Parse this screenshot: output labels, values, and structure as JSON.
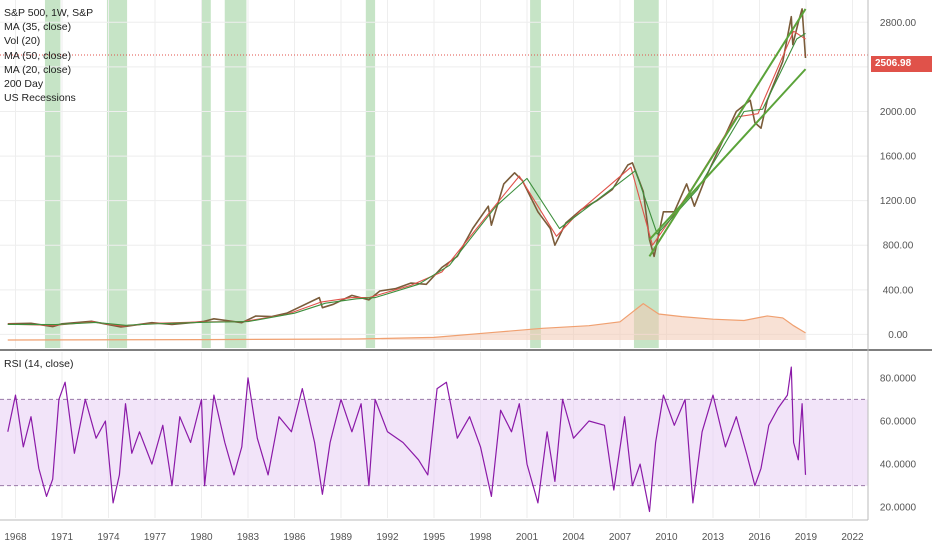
{
  "legend": {
    "symbol": "S&P 500, 1W, S&P",
    "ma35": "MA (35, close)",
    "vol": "Vol (20)",
    "ma50": "MA (50, close)",
    "ma20": "MA (20, close)",
    "day200": "200 Day",
    "recessions": "US Recessions"
  },
  "rsi_title": "RSI (14, close)",
  "last_price": "2506.98",
  "colors": {
    "price": "#7a5c3a",
    "ma_red": "#e0524a",
    "ma_green": "#3d8f3d",
    "trendline": "#5ba33a",
    "recession": "#a8d5a8",
    "volume_line": "#f0a070",
    "rsi_line": "#8b1aa8",
    "rsi_band": "#ead2f5",
    "price_tag": "#e0524a"
  },
  "chart_data": [
    {
      "type": "line",
      "title": "S&P 500, 1W, S&P",
      "series": [
        {
          "name": "S&P 500",
          "x": [
            1967.5,
            1969,
            1970.4,
            1971,
            1972.9,
            1974.8,
            1976.8,
            1978.1,
            1980.1,
            1980.8,
            1982.6,
            1983.5,
            1984.5,
            1985.5,
            1987.6,
            1987.8,
            1988.5,
            1989.7,
            1990.8,
            1991.5,
            1992.5,
            1993.5,
            1994.5,
            1995.5,
            1996.5,
            1997.5,
            1998.5,
            1998.7,
            1999.5,
            2000.2,
            2000.7,
            2001.7,
            2002.5,
            2002.8,
            2003.5,
            2004.5,
            2005.5,
            2006.5,
            2007.5,
            2007.8,
            2008.5,
            2008.9,
            2009.2,
            2009.8,
            2010.5,
            2011.3,
            2011.8,
            2012.5,
            2013.5,
            2014.5,
            2015.4,
            2015.7,
            2016.1,
            2016.5,
            2017.5,
            2018.05,
            2018.15,
            2018.5,
            2018.75,
            2018.97
          ],
          "y": [
            95,
            100,
            70,
            95,
            118,
            67,
            105,
            90,
            115,
            140,
            105,
            165,
            160,
            190,
            330,
            240,
            270,
            350,
            310,
            390,
            410,
            460,
            450,
            600,
            700,
            950,
            1150,
            980,
            1350,
            1450,
            1380,
            1100,
            950,
            800,
            1000,
            1120,
            1200,
            1300,
            1520,
            1540,
            1280,
            850,
            700,
            1100,
            1100,
            1350,
            1150,
            1400,
            1700,
            2000,
            2100,
            1900,
            1850,
            2100,
            2450,
            2850,
            2600,
            2800,
            2920,
            2480
          ]
        },
        {
          "name": "MA (20, close)",
          "x": [
            1967.5,
            1970.5,
            1973,
            1974.9,
            1977,
            1980,
            1982.7,
            1985.5,
            1987.7,
            1989.7,
            1990.8,
            1993.5,
            1995.5,
            1998.5,
            2000.5,
            2002.9,
            2004.5,
            2007.7,
            2009.1,
            2011.5,
            2014.5,
            2015.9,
            2018.2,
            2018.97
          ],
          "y": [
            92,
            82,
            112,
            75,
            100,
            112,
            115,
            180,
            290,
            330,
            330,
            440,
            560,
            1080,
            1420,
            880,
            1120,
            1500,
            800,
            1280,
            1950,
            1980,
            2720,
            2650
          ]
        },
        {
          "name": "MA (50, close)",
          "x": [
            1967.5,
            1970.6,
            1973.2,
            1975.1,
            1977.5,
            1980.5,
            1983,
            1986,
            1988,
            1990,
            1991.2,
            1994,
            1996,
            1999,
            2001,
            2003.1,
            2005,
            2008,
            2009.4,
            2012,
            2015,
            2016.2,
            2018.4,
            2018.97
          ],
          "y": [
            90,
            88,
            108,
            82,
            98,
            110,
            115,
            190,
            280,
            320,
            330,
            450,
            620,
            1150,
            1400,
            950,
            1150,
            1470,
            900,
            1300,
            2000,
            2020,
            2650,
            2700
          ]
        }
      ],
      "recessions": [
        [
          1969.9,
          1970.9
        ],
        [
          1973.9,
          1975.2
        ],
        [
          1980.0,
          1980.6
        ],
        [
          1981.5,
          1982.9
        ],
        [
          1990.6,
          1991.2
        ],
        [
          2001.2,
          2001.9
        ],
        [
          2007.9,
          2009.5
        ]
      ],
      "trendlines": [
        {
          "x": [
            2008.9,
            2018.97
          ],
          "y": [
            700,
            2920
          ]
        },
        {
          "x": [
            2008.9,
            2018.97
          ],
          "y": [
            850,
            2380
          ]
        }
      ],
      "volume_profile": {
        "x": [
          1967.5,
          1980,
          1990,
          1995,
          1999,
          2002,
          2005,
          2007,
          2008.5,
          2009.5,
          2011,
          2013,
          2015,
          2016.5,
          2017.5,
          2018.2,
          2018.97
        ],
        "y": [
          0,
          3,
          8,
          20,
          60,
          90,
          110,
          140,
          280,
          200,
          180,
          160,
          150,
          185,
          170,
          110,
          55
        ]
      },
      "xlabel": "",
      "ylabel": "",
      "xlim": [
        1967,
        2023
      ],
      "ylim": [
        -50,
        3000
      ],
      "yticks": [
        "0.00",
        "400.00",
        "800.00",
        "1200.00",
        "1600.00",
        "2000.00",
        "2400.00",
        "2800.00"
      ],
      "ytick_values": [
        0,
        400,
        800,
        1200,
        1600,
        2000,
        2400,
        2800
      ],
      "xticks": [
        "1968",
        "1971",
        "1974",
        "1977",
        "1980",
        "1983",
        "1986",
        "1989",
        "1992",
        "1995",
        "1998",
        "2001",
        "2004",
        "2007",
        "2010",
        "2013",
        "2016",
        "2019",
        "2022"
      ],
      "xtick_values": [
        1968,
        1971,
        1974,
        1977,
        1980,
        1983,
        1986,
        1989,
        1992,
        1995,
        1998,
        2001,
        2004,
        2007,
        2010,
        2013,
        2016,
        2019,
        2022
      ],
      "last_price_line": 2506.98,
      "grid": true
    },
    {
      "type": "line",
      "title": "RSI (14, close)",
      "series": [
        {
          "name": "RSI (14, close)",
          "x": [
            1967.5,
            1968,
            1968.5,
            1969,
            1969.5,
            1970,
            1970.4,
            1970.8,
            1971.2,
            1971.8,
            1972.5,
            1973.2,
            1973.8,
            1974.3,
            1974.7,
            1975.1,
            1975.5,
            1976,
            1976.8,
            1977.5,
            1978.1,
            1978.6,
            1979.3,
            1980,
            1980.2,
            1980.8,
            1981.5,
            1982.1,
            1982.6,
            1983,
            1983.6,
            1984.3,
            1985,
            1985.8,
            1986.5,
            1987.3,
            1987.8,
            1988.3,
            1989,
            1989.7,
            1990.3,
            1990.8,
            1991.2,
            1992,
            1993,
            1994,
            1994.6,
            1995.2,
            1995.8,
            1996.5,
            1997.3,
            1998,
            1998.7,
            1999.3,
            2000,
            2000.5,
            2001,
            2001.7,
            2002.3,
            2002.8,
            2003.3,
            2004,
            2005,
            2006,
            2006.6,
            2007.3,
            2007.8,
            2008.3,
            2008.9,
            2009.3,
            2009.8,
            2010.5,
            2011.2,
            2011.7,
            2012.3,
            2013,
            2013.8,
            2014.5,
            2015.2,
            2015.7,
            2016.1,
            2016.6,
            2017.2,
            2017.8,
            2018.05,
            2018.2,
            2018.5,
            2018.75,
            2018.97
          ],
          "y": [
            55,
            72,
            48,
            62,
            38,
            25,
            33,
            70,
            78,
            45,
            70,
            52,
            60,
            22,
            35,
            68,
            45,
            55,
            40,
            58,
            30,
            62,
            50,
            70,
            30,
            72,
            50,
            35,
            48,
            80,
            52,
            35,
            62,
            55,
            75,
            50,
            26,
            50,
            70,
            55,
            68,
            30,
            70,
            55,
            50,
            42,
            35,
            75,
            78,
            52,
            62,
            48,
            25,
            65,
            55,
            68,
            40,
            22,
            55,
            32,
            70,
            52,
            60,
            58,
            28,
            62,
            30,
            40,
            18,
            50,
            72,
            58,
            70,
            22,
            55,
            72,
            48,
            62,
            44,
            30,
            38,
            58,
            66,
            72,
            85,
            50,
            42,
            68,
            35
          ]
        }
      ],
      "upper_band": 70,
      "lower_band": 30,
      "ylim": [
        15,
        92
      ],
      "yticks": [
        "20.0000",
        "40.0000",
        "60.0000",
        "80.0000"
      ],
      "ytick_values": [
        20,
        40,
        60,
        80
      ],
      "xlim": [
        1967,
        2023
      ]
    }
  ]
}
